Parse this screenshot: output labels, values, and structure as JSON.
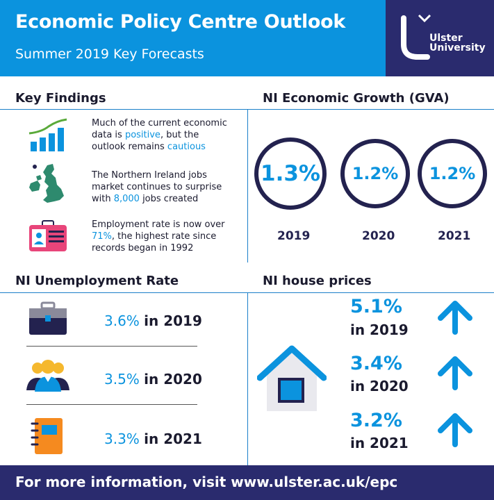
{
  "header": {
    "title": "Economic Policy Centre Outlook",
    "subtitle": "Summer 2019 Key Forecasts",
    "logo_line1": "Ulster",
    "logo_line2": "University"
  },
  "key_findings": {
    "heading": "Key Findings",
    "items": [
      {
        "icon": "bar-chart-icon",
        "before": "Much of the current economic data is ",
        "hl1": "positive",
        "mid": ", but the outlook remains ",
        "hl2": "cautious",
        "after": ""
      },
      {
        "icon": "uk-map-icon",
        "before": "The Northern Ireland jobs market continues to surprise with ",
        "hl1": "8,000",
        "mid": " jobs created",
        "hl2": "",
        "after": ""
      },
      {
        "icon": "id-card-icon",
        "before": "Employment rate is now over ",
        "hl1": "71%",
        "mid": ", the highest rate since records began in 1992",
        "hl2": "",
        "after": ""
      }
    ]
  },
  "growth": {
    "heading": "NI Economic Growth (GVA)",
    "items": [
      {
        "value": "1.3%",
        "year": "2019"
      },
      {
        "value": "1.2%",
        "year": "2020"
      },
      {
        "value": "1.2%",
        "year": "2021"
      }
    ]
  },
  "unemployment": {
    "heading": "NI Unemployment Rate",
    "items": [
      {
        "icon": "briefcase-icon",
        "pct": "3.6%",
        "year": "in 2019"
      },
      {
        "icon": "people-icon",
        "pct": "3.5%",
        "year": "in 2020"
      },
      {
        "icon": "notebook-icon",
        "pct": "3.3%",
        "year": "in 2021"
      }
    ]
  },
  "house_prices": {
    "heading": "NI house prices",
    "icon": "house-icon",
    "items": [
      {
        "pct": "5.1%",
        "year": "in 2019",
        "icon": "arrow-up-icon"
      },
      {
        "pct": "3.4%",
        "year": "in 2020",
        "icon": "arrow-up-icon"
      },
      {
        "pct": "3.2%",
        "year": "in 2021",
        "icon": "arrow-up-icon"
      }
    ]
  },
  "footer": {
    "text": "For more information, visit www.ulster.ac.uk/epc"
  },
  "colors": {
    "blue": "#0b93de",
    "navy": "#2a2b6e",
    "dark": "#23224f"
  }
}
